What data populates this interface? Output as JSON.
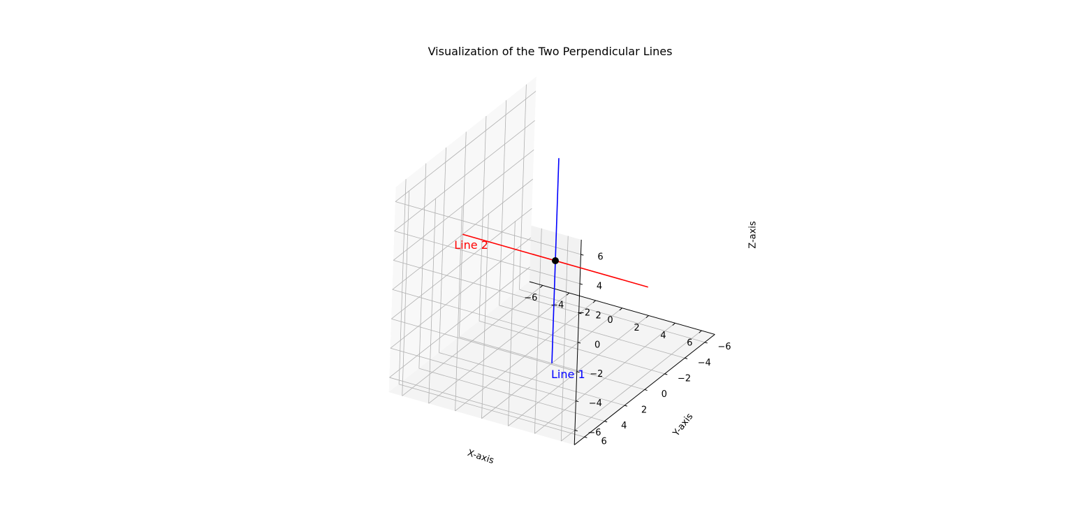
{
  "chart_data": {
    "type": "line3d",
    "title": "Visualization of the Two Perpendicular Lines",
    "xlabel": "X-axis",
    "ylabel": "Y-axis",
    "zlabel": "Z-axis",
    "xlim": [
      -7,
      7
    ],
    "ylim": [
      -7,
      7
    ],
    "zlim": [
      -7,
      7
    ],
    "xticks": [
      "−6",
      "−4",
      "−2",
      "0",
      "2",
      "4",
      "6"
    ],
    "yticks": [
      "−6",
      "−4",
      "−2",
      "0",
      "2",
      "4",
      "6"
    ],
    "zticks": [
      "−6",
      "−4",
      "−2",
      "0",
      "2",
      "4",
      "6"
    ],
    "grid": true,
    "series": [
      {
        "name": "Line 1",
        "color": "#0000ff",
        "points": [
          [
            0,
            0,
            -7
          ],
          [
            0,
            0,
            7
          ]
        ]
      },
      {
        "name": "Line 2",
        "color": "#ff0000",
        "points": [
          [
            -7,
            0,
            0
          ],
          [
            7,
            0,
            0
          ]
        ]
      }
    ],
    "intersection": {
      "point": [
        0,
        0,
        0
      ],
      "color": "#000000"
    },
    "annotations": [
      {
        "text": "Line 1",
        "color": "#0000ff"
      },
      {
        "text": "Line 2",
        "color": "#ff0000"
      }
    ]
  }
}
